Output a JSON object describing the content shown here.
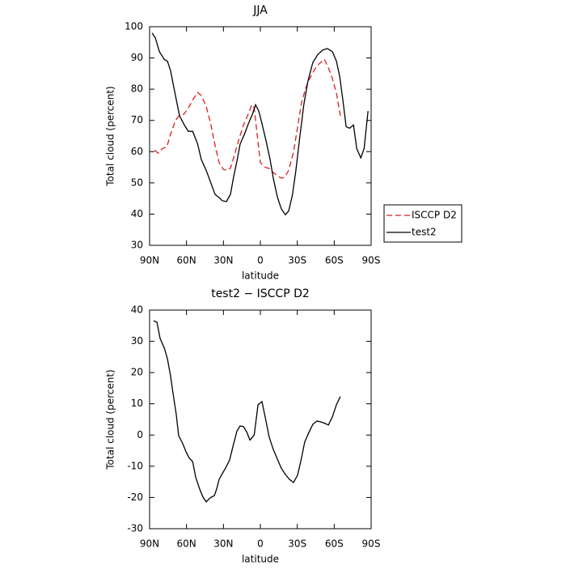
{
  "chart_data": [
    {
      "type": "line",
      "title": "JJA",
      "xlabel": "latitude",
      "ylabel": "Total cloud (percent)",
      "xlim": [
        90,
        -90
      ],
      "xticks": [
        {
          "value": 90,
          "label": "90N"
        },
        {
          "value": 60,
          "label": "60N"
        },
        {
          "value": 30,
          "label": "30N"
        },
        0,
        {
          "value": -30,
          "label": "30S"
        },
        {
          "value": -60,
          "label": "60S"
        },
        {
          "value": -90,
          "label": "90S"
        }
      ],
      "ylim": [
        30,
        100
      ],
      "yticks": [
        30,
        40,
        50,
        60,
        70,
        80,
        90,
        100
      ],
      "legend": "outside-right",
      "series": [
        {
          "name": "ISCCP D2",
          "color": "#e41a1c",
          "style": "dashed",
          "x": [
            86,
            83,
            79.5,
            76,
            73,
            69,
            66,
            62,
            58.5,
            55,
            51,
            48,
            44,
            40.7,
            36.8,
            33.5,
            30,
            27,
            24.3,
            21,
            17,
            13.7,
            10.4,
            7,
            5,
            2.6,
            0,
            -3.9,
            -7.2,
            -10.5,
            -13.8,
            -17,
            -19.7,
            -23,
            -27,
            -30.3,
            -33.6,
            -37,
            -40.2,
            -44,
            -47.4,
            -52,
            -55.3,
            -58.5,
            -61.8,
            -65
          ],
          "values": [
            60.5,
            59.5,
            61,
            61.5,
            65.5,
            70,
            71.5,
            72,
            74,
            76.5,
            79,
            78,
            74.5,
            69.5,
            62,
            56.5,
            54.3,
            54,
            54.7,
            59,
            64.5,
            68.5,
            71.5,
            75,
            74,
            65.5,
            56.5,
            55,
            54.6,
            53.3,
            52.3,
            51.5,
            51.8,
            54,
            60,
            68,
            76,
            80.5,
            83.5,
            86.3,
            88,
            89.6,
            86.8,
            83.5,
            78.7,
            71.5
          ]
        },
        {
          "name": "test2",
          "color": "#000000",
          "style": "solid",
          "x": [
            88,
            85.4,
            82,
            78,
            75.5,
            73,
            69,
            65.7,
            61.7,
            58.5,
            55,
            51,
            48,
            44,
            40.7,
            36.8,
            33.5,
            31,
            27.6,
            24.3,
            21.7,
            19,
            16.4,
            13,
            9.7,
            6.4,
            3.9,
            1.3,
            -1.3,
            -4.6,
            -7.9,
            -10.5,
            -13.8,
            -17,
            -20.3,
            -23,
            -26,
            -28.7,
            -32,
            -35.3,
            -38.6,
            -42.6,
            -46.5,
            -50.5,
            -54.5,
            -58.5,
            -61.8,
            -64.5,
            -67.2,
            -69.7,
            -72.4,
            -75.7,
            -78.3,
            -81.6,
            -84.3,
            -87.5
          ],
          "values": [
            98,
            96.5,
            92,
            89.5,
            89,
            86,
            78,
            71.5,
            68.5,
            66.5,
            66.5,
            62.5,
            57.5,
            54,
            50.5,
            46.3,
            45.3,
            44.3,
            44,
            46.3,
            52,
            57,
            62.5,
            65.5,
            69,
            72,
            75,
            73,
            69,
            63.5,
            57.5,
            51.5,
            45.5,
            41.7,
            39.8,
            41,
            46,
            53.5,
            64.5,
            75,
            82.5,
            88.5,
            91,
            92.5,
            93,
            92,
            89,
            84,
            76,
            68,
            67.5,
            68.5,
            61,
            58,
            61,
            73
          ]
        }
      ]
    },
    {
      "type": "line",
      "title": "test2 − ISCCP D2",
      "xlabel": "latitude",
      "ylabel": "Total cloud (percent)",
      "xlim": [
        90,
        -90
      ],
      "xticks": [
        {
          "value": 90,
          "label": "90N"
        },
        {
          "value": 60,
          "label": "60N"
        },
        {
          "value": 30,
          "label": "30N"
        },
        0,
        {
          "value": -30,
          "label": "30S"
        },
        {
          "value": -60,
          "label": "60S"
        },
        {
          "value": -90,
          "label": "90S"
        }
      ],
      "ylim": [
        -30,
        40
      ],
      "yticks": [
        -30,
        -20,
        -10,
        0,
        10,
        20,
        30,
        40
      ],
      "series": [
        {
          "color": "#000000",
          "style": "solid",
          "x": [
            86.7,
            84,
            81.5,
            78,
            75.5,
            73,
            71,
            68.3,
            66.4,
            63,
            60.4,
            57.7,
            55,
            52.5,
            49.3,
            46.6,
            44,
            40.7,
            37.4,
            35.5,
            33.5,
            31,
            28.3,
            25,
            21.7,
            19,
            16.4,
            13.7,
            11,
            8.5,
            5,
            1.9,
            -1.3,
            -3.9,
            -7.2,
            -10.5,
            -13.8,
            -17,
            -20.3,
            -23.6,
            -26.9,
            -30.2,
            -32.8,
            -36,
            -39.4,
            -42.6,
            -46,
            -49.3,
            -52.6,
            -55.3,
            -58.5,
            -61.8,
            -65
          ],
          "values": [
            36.6,
            36.1,
            31,
            27.8,
            24.4,
            19,
            13.5,
            6.5,
            -0.2,
            -2.8,
            -5.4,
            -7.4,
            -8.5,
            -13.6,
            -17.3,
            -19.9,
            -21.4,
            -20.1,
            -19.4,
            -17.3,
            -14.2,
            -12.4,
            -10.6,
            -8,
            -2.8,
            1.3,
            2.9,
            2.7,
            0.9,
            -1.6,
            0,
            9.7,
            10.7,
            5.8,
            -0.7,
            -4.6,
            -7.7,
            -10.6,
            -12.6,
            -14.2,
            -15.2,
            -12.9,
            -8.5,
            -2.3,
            0.8,
            3.4,
            4.5,
            4.2,
            3.7,
            3.2,
            5.8,
            9.7,
            12.3
          ]
        }
      ]
    }
  ]
}
